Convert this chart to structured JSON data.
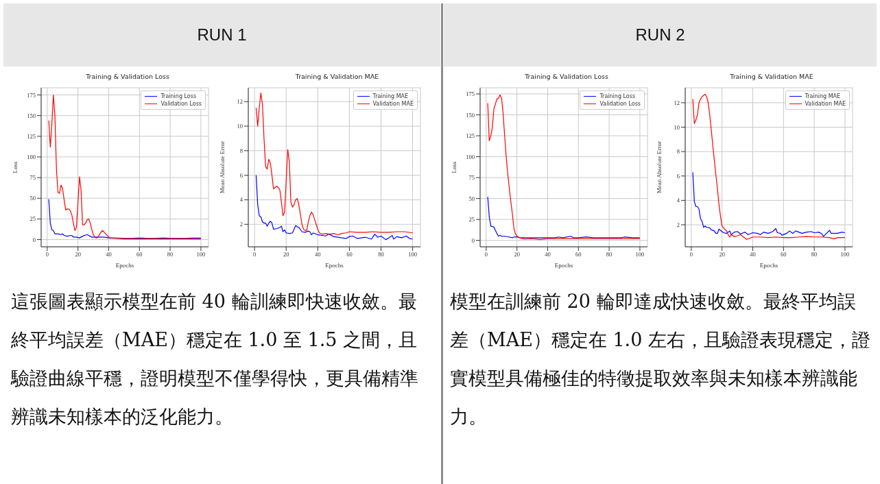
{
  "chart_data": [
    {
      "type": "other",
      "title": "RUN 1"
    },
    {
      "type": "other",
      "title": "RUN 2"
    },
    {
      "type": "line",
      "title": "Training & Validation Loss",
      "xlabel": "Epochs",
      "ylabel": "Loss",
      "xlim": [
        -3.95,
        104.95
      ],
      "ylim": [
        -8.7,
        183.7
      ],
      "xticks": [
        0,
        20,
        40,
        60,
        80,
        100
      ],
      "yticks": [
        0,
        25,
        50,
        75,
        100,
        125,
        150,
        175
      ],
      "grid": true,
      "legend": "top right",
      "series": [
        {
          "name": "Training Loss",
          "color": "#0000ff",
          "x": [
            1,
            2,
            3,
            4,
            5,
            7,
            9,
            10,
            11,
            13,
            15,
            16,
            17,
            19,
            21,
            22,
            24,
            26,
            27,
            29,
            31,
            33,
            35,
            37,
            40,
            45,
            50,
            55,
            60,
            65,
            70,
            75,
            80,
            85,
            90,
            95,
            100
          ],
          "values": [
            49,
            20,
            12,
            11,
            7,
            7,
            6,
            7,
            5,
            4,
            5,
            5,
            3,
            3,
            2,
            3,
            5,
            6,
            5,
            3,
            3,
            3,
            3,
            3,
            2,
            1.5,
            1,
            1,
            1,
            1,
            1,
            1,
            1,
            1,
            1,
            1,
            1
          ]
        },
        {
          "name": "Validation Loss",
          "color": "#ff0000",
          "x": [
            1,
            2,
            3,
            4,
            5,
            6,
            7,
            8,
            9,
            10,
            11,
            12,
            13,
            14,
            15,
            16,
            17,
            18,
            19,
            20,
            21,
            22,
            23,
            24,
            25,
            26,
            27,
            28,
            29,
            30,
            31,
            32,
            33,
            34,
            35,
            36,
            37,
            38,
            39,
            40,
            41,
            45,
            50,
            55,
            60,
            65,
            70,
            76,
            80,
            85,
            90,
            95,
            100
          ],
          "values": [
            144,
            112,
            140,
            175,
            150,
            85,
            57,
            56,
            66,
            62,
            48,
            36,
            37,
            37,
            35,
            30,
            20,
            11,
            15,
            45,
            76,
            60,
            18,
            18,
            20,
            24,
            25,
            20,
            12,
            6,
            3,
            2,
            3,
            6,
            9,
            11,
            9,
            7,
            5,
            3,
            2,
            2,
            1.5,
            1.5,
            2,
            1.5,
            1.5,
            2,
            1.5,
            1.5,
            1.5,
            2,
            2
          ]
        }
      ]
    },
    {
      "type": "line",
      "title": "Training & Validation MAE",
      "xlabel": "Epochs",
      "ylabel": "Mean Absolute Error",
      "xlim": [
        -3.95,
        104.95
      ],
      "ylim": [
        0.17,
        13.13
      ],
      "xticks": [
        0,
        20,
        40,
        60,
        80,
        100
      ],
      "yticks": [
        2,
        4,
        6,
        8,
        10,
        12
      ],
      "grid": true,
      "legend": "top right",
      "series": [
        {
          "name": "Training MAE",
          "color": "#0000ff",
          "x": [
            1,
            2,
            3,
            4,
            5,
            6,
            7,
            8,
            9,
            10,
            11,
            12,
            14,
            16,
            17,
            18,
            19,
            20,
            22,
            24,
            26,
            27,
            28,
            30,
            32,
            34,
            35,
            36,
            37,
            40,
            45,
            47,
            50,
            55,
            58,
            60,
            62,
            65,
            70,
            74,
            76,
            78,
            80,
            83,
            85,
            87,
            88,
            90,
            93,
            96,
            98,
            100
          ],
          "values": [
            6,
            3.6,
            2.7,
            2.6,
            2.2,
            2.1,
            2.1,
            1.85,
            2.1,
            2.25,
            2.1,
            1.6,
            1.65,
            1.75,
            1.85,
            1.4,
            1.55,
            1.3,
            1.25,
            1.3,
            1.9,
            1.8,
            1.75,
            1.4,
            1.35,
            1.45,
            1.4,
            1.15,
            1.3,
            1.15,
            1.05,
            1.2,
            1,
            0.9,
            0.85,
            1,
            1.05,
            0.85,
            0.95,
            0.8,
            1.2,
            0.95,
            1.05,
            0.75,
            0.9,
            1.1,
            0.8,
            1,
            0.9,
            1.05,
            0.85,
            0.8
          ]
        },
        {
          "name": "Validation MAE",
          "color": "#ff0000",
          "x": [
            1,
            2,
            3,
            4,
            5,
            6,
            7,
            8,
            9,
            10,
            11,
            12,
            13,
            14,
            15,
            16,
            17,
            18,
            19,
            20,
            21,
            22,
            23,
            24,
            25,
            26,
            27,
            28,
            29,
            30,
            31,
            32,
            33,
            34,
            35,
            36,
            37,
            38,
            39,
            40,
            41,
            43,
            45,
            48,
            50,
            53,
            55,
            58,
            60,
            65,
            70,
            75,
            80,
            85,
            90,
            95,
            100
          ],
          "values": [
            11.5,
            10,
            11.5,
            12.7,
            11.8,
            9,
            6.7,
            6.5,
            7.3,
            7,
            6,
            4.9,
            5,
            5.1,
            5,
            4.8,
            3.8,
            2.7,
            3,
            5.5,
            8.1,
            7.1,
            3.8,
            3.4,
            3.6,
            4,
            4.1,
            3.6,
            2.8,
            2,
            1.6,
            1.5,
            1.5,
            2.2,
            2.7,
            3,
            2.8,
            2.4,
            2,
            1.6,
            1.3,
            1.2,
            1.25,
            1.2,
            1.25,
            1.15,
            1.25,
            1.3,
            1.4,
            1.35,
            1.35,
            1.4,
            1.35,
            1.35,
            1.4,
            1.4,
            1.3
          ]
        }
      ]
    },
    {
      "type": "line",
      "title": "Training & Validation Loss",
      "xlabel": "Epochs",
      "ylabel": "Loss",
      "xlim": [
        -3.95,
        104.95
      ],
      "ylim": [
        -7.7,
        182.4
      ],
      "xticks": [
        0,
        20,
        40,
        60,
        80,
        100
      ],
      "yticks": [
        0,
        25,
        50,
        75,
        100,
        125,
        150,
        175
      ],
      "grid": true,
      "legend": "top right",
      "series": [
        {
          "name": "Training Loss",
          "color": "#0000ff",
          "x": [
            1,
            2,
            3,
            5,
            6,
            7,
            8,
            9,
            10,
            12,
            15,
            17,
            18,
            20,
            22,
            25,
            30,
            35,
            40,
            45,
            47,
            50,
            55,
            57,
            60,
            65,
            70,
            75,
            80,
            85,
            88,
            90,
            95,
            100
          ],
          "values": [
            52,
            28,
            17,
            16,
            12,
            8,
            5,
            6,
            5,
            5,
            4,
            3,
            4,
            4,
            3,
            3,
            3,
            3,
            3,
            3,
            4,
            3,
            5,
            3,
            3,
            4,
            3,
            3,
            3,
            3,
            3,
            4,
            3,
            3
          ]
        },
        {
          "name": "Validation Loss",
          "color": "#ff0000",
          "x": [
            1,
            2,
            3,
            4,
            5,
            6,
            7,
            8,
            9,
            10,
            11,
            12,
            13,
            14,
            15,
            16,
            17,
            18,
            19,
            20,
            22,
            25,
            30,
            35,
            40,
            50,
            60,
            70,
            80,
            90,
            100
          ],
          "values": [
            164,
            119,
            125,
            135,
            157,
            163,
            169,
            170,
            174,
            170,
            152,
            125,
            100,
            80,
            63,
            47,
            32,
            15,
            8,
            5,
            3,
            1.5,
            2,
            1,
            2,
            2,
            2,
            2,
            2,
            2,
            2
          ]
        }
      ]
    },
    {
      "type": "line",
      "title": "Training & Validation MAE",
      "xlabel": "Epochs",
      "ylabel": "Mean Absolute Error",
      "xlim": [
        -3.95,
        104.95
      ],
      "ylim": [
        0.2,
        13.23
      ],
      "xticks": [
        0,
        20,
        40,
        60,
        80,
        100
      ],
      "yticks": [
        2,
        4,
        6,
        8,
        10,
        12
      ],
      "grid": true,
      "legend": "top right",
      "series": [
        {
          "name": "Training MAE",
          "color": "#0000ff",
          "x": [
            1,
            2,
            3,
            4,
            5,
            6,
            7,
            8,
            9,
            10,
            12,
            13,
            15,
            16,
            17,
            18,
            19,
            21,
            23,
            25,
            26,
            28,
            30,
            32,
            35,
            37,
            40,
            43,
            45,
            47,
            50,
            53,
            55,
            56,
            58,
            59,
            62,
            64,
            66,
            68,
            70,
            72,
            75,
            78,
            80,
            83,
            85,
            86,
            88,
            90,
            91,
            95,
            98,
            100
          ],
          "values": [
            6.3,
            3.9,
            3.5,
            3.5,
            3.3,
            2.5,
            2.3,
            1.8,
            1.9,
            1.8,
            1.75,
            1.6,
            1.5,
            1.3,
            1.3,
            1.65,
            1.55,
            1.35,
            1.3,
            1.5,
            1.2,
            1.4,
            1.45,
            1.25,
            1.4,
            1.2,
            1.35,
            1.3,
            1.2,
            1.4,
            1.3,
            1.45,
            1.7,
            1.35,
            1.3,
            1.15,
            1.3,
            1.5,
            1.3,
            1.5,
            1.4,
            1.3,
            1.4,
            1.45,
            1.35,
            1.4,
            1.25,
            1.05,
            1.3,
            1.55,
            1.3,
            1.3,
            1.4,
            1.35
          ]
        },
        {
          "name": "Validation MAE",
          "color": "#ff0000",
          "x": [
            1,
            2,
            3,
            4,
            5,
            6,
            7,
            8,
            9,
            10,
            11,
            12,
            13,
            14,
            15,
            16,
            17,
            18,
            19,
            20,
            22,
            23,
            24,
            25,
            26,
            28,
            30,
            32,
            34,
            36,
            38,
            40,
            45,
            50,
            55,
            60,
            65,
            70,
            75,
            80,
            85,
            90,
            93,
            95,
            100
          ],
          "values": [
            12.3,
            10.3,
            10.6,
            11,
            12,
            12.3,
            12.5,
            12.6,
            12.7,
            12.5,
            12,
            11,
            9.8,
            8.5,
            7.3,
            6.1,
            5,
            3.7,
            2.7,
            1.9,
            1.6,
            1.5,
            1.2,
            1,
            1.2,
            1.05,
            1.1,
            1.2,
            1,
            0.8,
            0.9,
            1,
            1,
            0.95,
            1,
            0.95,
            0.95,
            1,
            1.05,
            1,
            1,
            0.95,
            0.85,
            0.95,
            0.95
          ]
        }
      ]
    },
    {
      "type": "other",
      "annotations": [
        "這張圖表顯示模型在前 40 輪訓練即快速收斂。最終平均誤差（MAE）穩定在 1.0 至 1.5 之間，且驗證曲線平穩，證明模型不僅學得快，更具備精準辨識未知樣本的泛化能力。"
      ]
    },
    {
      "type": "other",
      "annotations": [
        "模型在訓練前 20 輪即達成快速收斂。最終平均誤差（MAE）穩定在 1.0 左右，且驗證表現穩定，證實模型具備極佳的特徵提取效率與未知樣本辨識能力。"
      ]
    }
  ]
}
